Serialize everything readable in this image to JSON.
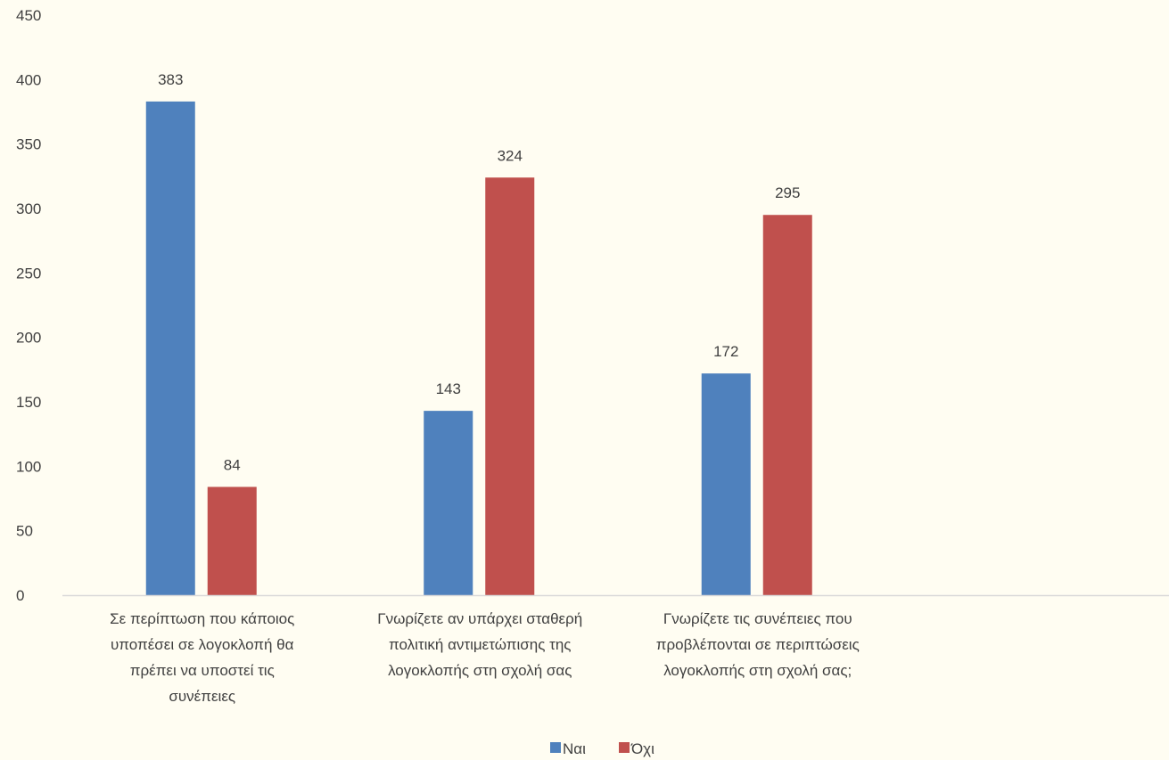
{
  "chart_data": {
    "type": "bar",
    "categories": [
      [
        "Σε περίπτωση που κάποιος",
        "υποπέσει σε λογοκλοπή θα",
        "πρέπει να υποστεί τις",
        "συνέπειες"
      ],
      [
        "Γνωρίζετε αν υπάρχει σταθερή",
        "πολιτική αντιμετώπισης της",
        "λογοκλοπής στη σχολή σας"
      ],
      [
        "Γνωρίζετε τις συνέπειες που",
        "προβλέπονται σε περιπτώσεις",
        "λογοκλοπής στη σχολή σας;"
      ]
    ],
    "series": [
      {
        "name": "Ναι",
        "values": [
          383,
          143,
          172
        ],
        "color": "#4f81bd"
      },
      {
        "name": "Όχι",
        "values": [
          84,
          324,
          295
        ],
        "color": "#c0504d"
      }
    ],
    "ylim": [
      0,
      450
    ],
    "yticks": [
      0,
      50,
      100,
      150,
      200,
      250,
      300,
      350,
      400,
      450
    ],
    "grid": false,
    "legend": "bottom-center",
    "data_labels": true,
    "axis_color": "#d9d9d9",
    "text_color": "#404040"
  }
}
